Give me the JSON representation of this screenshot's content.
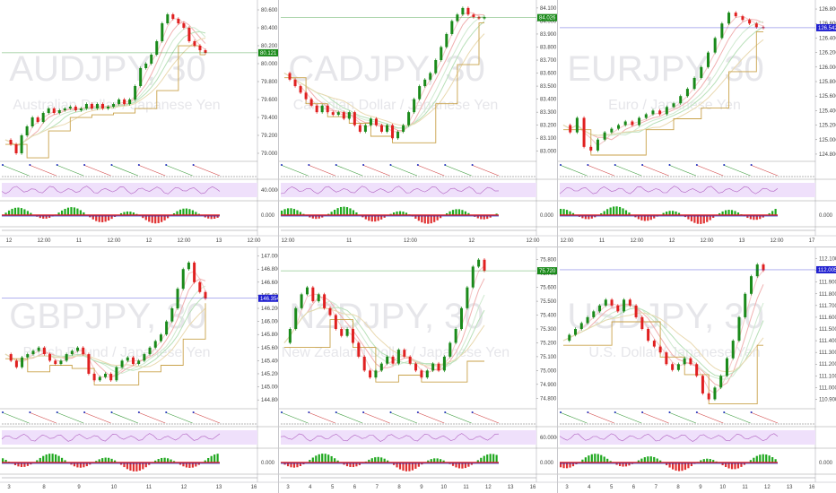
{
  "chart_data": [
    {
      "type": "line",
      "watermark_symbol": "AUDJPY, 30",
      "watermark_description": "Australian Dollar / Japanese Yen",
      "last_price": "80.121",
      "y_ticks": [
        "80.600",
        "80.400",
        "80.200",
        "80.000",
        "79.800",
        "79.600",
        "79.400",
        "79.200",
        "79.000"
      ],
      "y_range": [
        78.95,
        80.65
      ],
      "x_ticks": [
        "12",
        "12:00",
        "11",
        "12:00",
        "12",
        "12:00",
        "13",
        "12:00"
      ],
      "indicator_ticks": [
        "40.0000",
        "0.000"
      ],
      "colors": {
        "up": "#1a8a1a",
        "down": "#e02020",
        "neutral": "#2020d0",
        "tag": "#1a8a1a"
      },
      "series": [
        {
          "values": [
            79.15,
            79.1,
            79.0,
            79.2,
            79.3,
            79.4,
            79.35,
            79.45,
            79.5,
            79.45,
            79.48,
            79.5,
            79.52,
            79.48,
            79.5,
            79.55,
            79.5,
            79.55,
            79.5,
            79.52,
            79.55,
            79.6,
            79.55,
            79.6,
            79.75,
            79.95,
            80.0,
            80.1,
            80.25,
            80.45,
            80.55,
            80.5,
            80.45,
            80.4,
            80.25,
            80.2,
            80.15,
            80.12
          ]
        }
      ]
    },
    {
      "type": "line",
      "watermark_symbol": "CADJPY, 30",
      "watermark_description": "Canadian Dollar / Japanese Yen",
      "last_price": "84.026",
      "y_ticks": [
        "84.100",
        "84.000",
        "83.900",
        "83.800",
        "83.700",
        "83.600",
        "83.500",
        "83.400",
        "83.300",
        "83.200",
        "83.100",
        "83.000"
      ],
      "y_range": [
        82.95,
        84.12
      ],
      "x_ticks": [
        "12:00",
        "11",
        "12:00",
        "12",
        "12:00"
      ],
      "indicator_ticks": [
        "0.000"
      ],
      "colors": {
        "up": "#1a8a1a",
        "down": "#e02020",
        "neutral": "#2020d0",
        "tag": "#1a8a1a"
      },
      "series": [
        {
          "values": [
            83.6,
            83.55,
            83.5,
            83.45,
            83.4,
            83.35,
            83.3,
            83.35,
            83.3,
            83.28,
            83.3,
            83.25,
            83.3,
            83.2,
            83.15,
            83.2,
            83.25,
            83.2,
            83.15,
            83.2,
            83.1,
            83.15,
            83.2,
            83.3,
            83.4,
            83.5,
            83.55,
            83.6,
            83.7,
            83.8,
            83.9,
            84.0,
            84.05,
            84.1,
            84.05,
            84.03,
            84.02,
            84.03
          ]
        }
      ]
    },
    {
      "type": "line",
      "watermark_symbol": "EURJPY, 30",
      "watermark_description": "Euro / Japanese Yen",
      "last_price": "126.542",
      "y_ticks": [
        "126.800",
        "126.600",
        "126.400",
        "126.200",
        "126.000",
        "125.800",
        "125.600",
        "125.400",
        "125.200",
        "125.000",
        "124.800"
      ],
      "y_range": [
        124.75,
        126.85
      ],
      "x_ticks": [
        "12:00",
        "11",
        "12:00",
        "12",
        "12:00",
        "13",
        "12:00",
        "17"
      ],
      "indicator_ticks": [
        "0.000"
      ],
      "colors": {
        "up": "#1a8a1a",
        "down": "#e02020",
        "neutral": "#2020d0",
        "tag": "#2020d0"
      },
      "series": [
        {
          "values": [
            125.2,
            125.1,
            125.3,
            124.9,
            124.85,
            125.0,
            125.1,
            125.15,
            125.2,
            125.25,
            125.2,
            125.3,
            125.35,
            125.4,
            125.35,
            125.45,
            125.5,
            125.6,
            125.7,
            125.85,
            126.0,
            126.2,
            126.4,
            126.6,
            126.75,
            126.7,
            126.65,
            126.6,
            126.55,
            126.54
          ]
        }
      ]
    },
    {
      "type": "line",
      "watermark_symbol": "GBPJPY, 30",
      "watermark_description": "British Pound / Japanese Yen",
      "last_price": "146.354",
      "y_ticks": [
        "147.000",
        "146.800",
        "146.600",
        "146.400",
        "146.200",
        "146.000",
        "145.800",
        "145.600",
        "145.400",
        "145.200",
        "145.000",
        "144.800"
      ],
      "y_range": [
        144.72,
        147.05
      ],
      "x_ticks": [
        "3",
        "8",
        "9",
        "10",
        "11",
        "12",
        "13",
        "16"
      ],
      "indicator_ticks": [
        "0.000"
      ],
      "colors": {
        "up": "#1a8a1a",
        "down": "#e02020",
        "neutral": "#2020d0",
        "tag": "#2020d0"
      },
      "series": [
        {
          "values": [
            145.5,
            145.4,
            145.3,
            145.45,
            145.5,
            145.55,
            145.6,
            145.5,
            145.4,
            145.35,
            145.4,
            145.5,
            145.55,
            145.6,
            145.5,
            145.2,
            145.1,
            145.15,
            145.2,
            145.1,
            145.3,
            145.4,
            145.45,
            145.35,
            145.4,
            145.5,
            145.6,
            145.7,
            145.8,
            146.0,
            146.2,
            146.5,
            146.8,
            146.9,
            146.6,
            146.45,
            146.35
          ]
        }
      ]
    },
    {
      "type": "line",
      "watermark_symbol": "NZDJPY, 30",
      "watermark_description": "New Zealand Dollar / Japanese Yen",
      "last_price": "75.720",
      "y_ticks": [
        "75.800",
        "75.700",
        "75.600",
        "75.500",
        "75.400",
        "75.300",
        "75.200",
        "75.100",
        "75.000",
        "74.900",
        "74.800"
      ],
      "y_range": [
        74.75,
        75.85
      ],
      "x_ticks": [
        "3",
        "4",
        "5",
        "6",
        "7",
        "8",
        "9",
        "10",
        "11",
        "12",
        "13",
        "16"
      ],
      "indicator_ticks": [
        "60.0000",
        "0.000"
      ],
      "colors": {
        "up": "#1a8a1a",
        "down": "#e02020",
        "neutral": "#2020d0",
        "tag": "#1a8a1a"
      },
      "series": [
        {
          "values": [
            75.2,
            75.3,
            75.45,
            75.55,
            75.6,
            75.5,
            75.55,
            75.45,
            75.4,
            75.3,
            75.25,
            75.3,
            75.2,
            75.1,
            75.0,
            74.95,
            75.0,
            75.05,
            75.1,
            75.05,
            75.15,
            75.1,
            75.05,
            75.0,
            74.95,
            75.0,
            75.05,
            75.0,
            75.1,
            75.2,
            75.3,
            75.45,
            75.6,
            75.75,
            75.8,
            75.72
          ]
        }
      ]
    },
    {
      "type": "line",
      "watermark_symbol": "USDJPY, 30",
      "watermark_description": "U.S. Dollar / Japanese Yen",
      "last_price": "112.005",
      "y_ticks": [
        "112.100",
        "112.000",
        "111.900",
        "111.800",
        "111.700",
        "111.600",
        "111.500",
        "111.400",
        "111.300",
        "111.200",
        "111.100",
        "111.000",
        "110.900"
      ],
      "y_range": [
        110.85,
        112.15
      ],
      "x_ticks": [
        "3",
        "4",
        "5",
        "6",
        "7",
        "8",
        "9",
        "10",
        "11",
        "12",
        "13",
        "16"
      ],
      "indicator_ticks": [
        "0.000"
      ],
      "colors": {
        "up": "#1a8a1a",
        "down": "#e02020",
        "neutral": "#2020d0",
        "tag": "#2020d0"
      },
      "series": [
        {
          "values": [
            111.4,
            111.45,
            111.5,
            111.55,
            111.6,
            111.65,
            111.7,
            111.75,
            111.7,
            111.65,
            111.75,
            111.7,
            111.6,
            111.5,
            111.4,
            111.35,
            111.3,
            111.2,
            111.15,
            111.2,
            111.25,
            111.2,
            111.1,
            110.95,
            110.9,
            111.0,
            111.1,
            111.25,
            111.4,
            111.6,
            111.8,
            111.95,
            112.05,
            112.0
          ]
        }
      ]
    }
  ]
}
